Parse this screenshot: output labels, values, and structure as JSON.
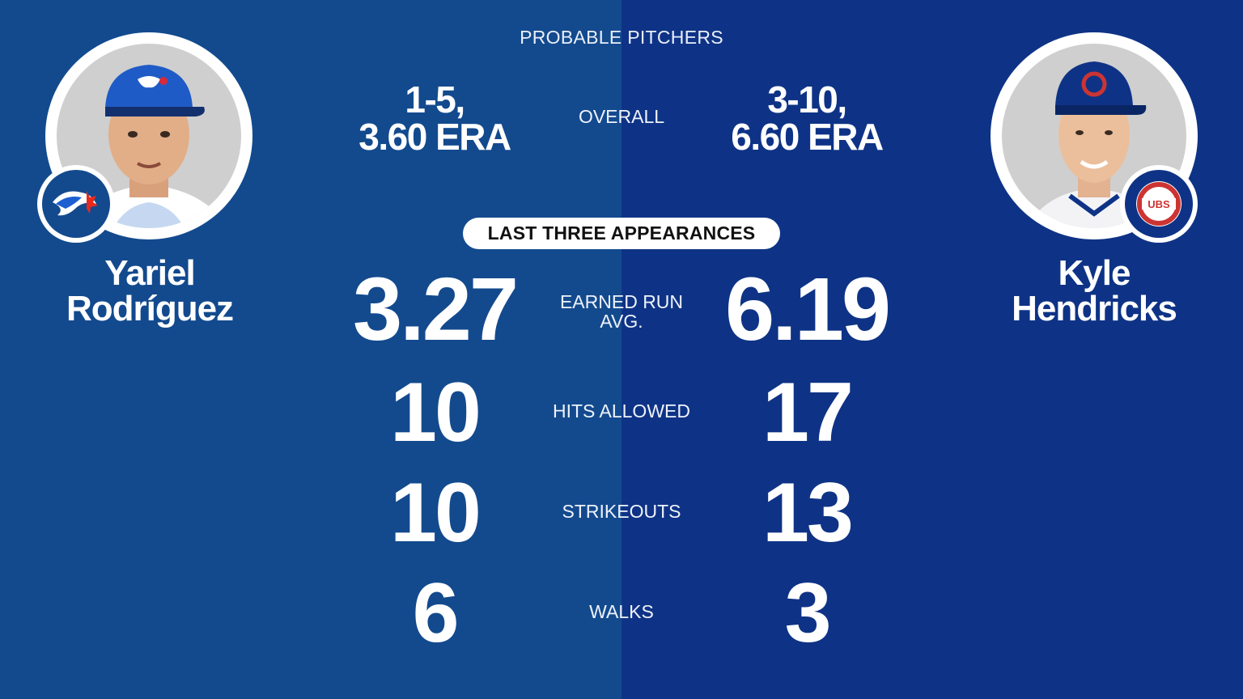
{
  "title": "PROBABLE PITCHERS",
  "section_label": "LAST THREE APPEARANCES",
  "colors": {
    "left_background": "#134a8e",
    "right_background": "#0e3386",
    "text": "#ffffff",
    "pill_background": "#ffffff",
    "pill_text": "#111111"
  },
  "left_pitcher": {
    "first_name": "Yariel",
    "last_name": "Rodríguez",
    "team_logo": "blue-jays-logo-icon",
    "overall_line1": "1-5,",
    "overall_line2": "3.60 ERA"
  },
  "right_pitcher": {
    "first_name": "Kyle",
    "last_name": "Hendricks",
    "team_logo": "cubs-logo-icon",
    "overall_line1": "3-10,",
    "overall_line2": "6.60 ERA"
  },
  "overall_label": "OVERALL",
  "stats": [
    {
      "label_line1": "EARNED RUN",
      "label_line2": "AVG.",
      "left": "3.27",
      "right": "6.19"
    },
    {
      "label_line1": "HITS ALLOWED",
      "label_line2": "",
      "left": "10",
      "right": "17"
    },
    {
      "label_line1": "STRIKEOUTS",
      "label_line2": "",
      "left": "10",
      "right": "13"
    },
    {
      "label_line1": "WALKS",
      "label_line2": "",
      "left": "6",
      "right": "3"
    }
  ]
}
